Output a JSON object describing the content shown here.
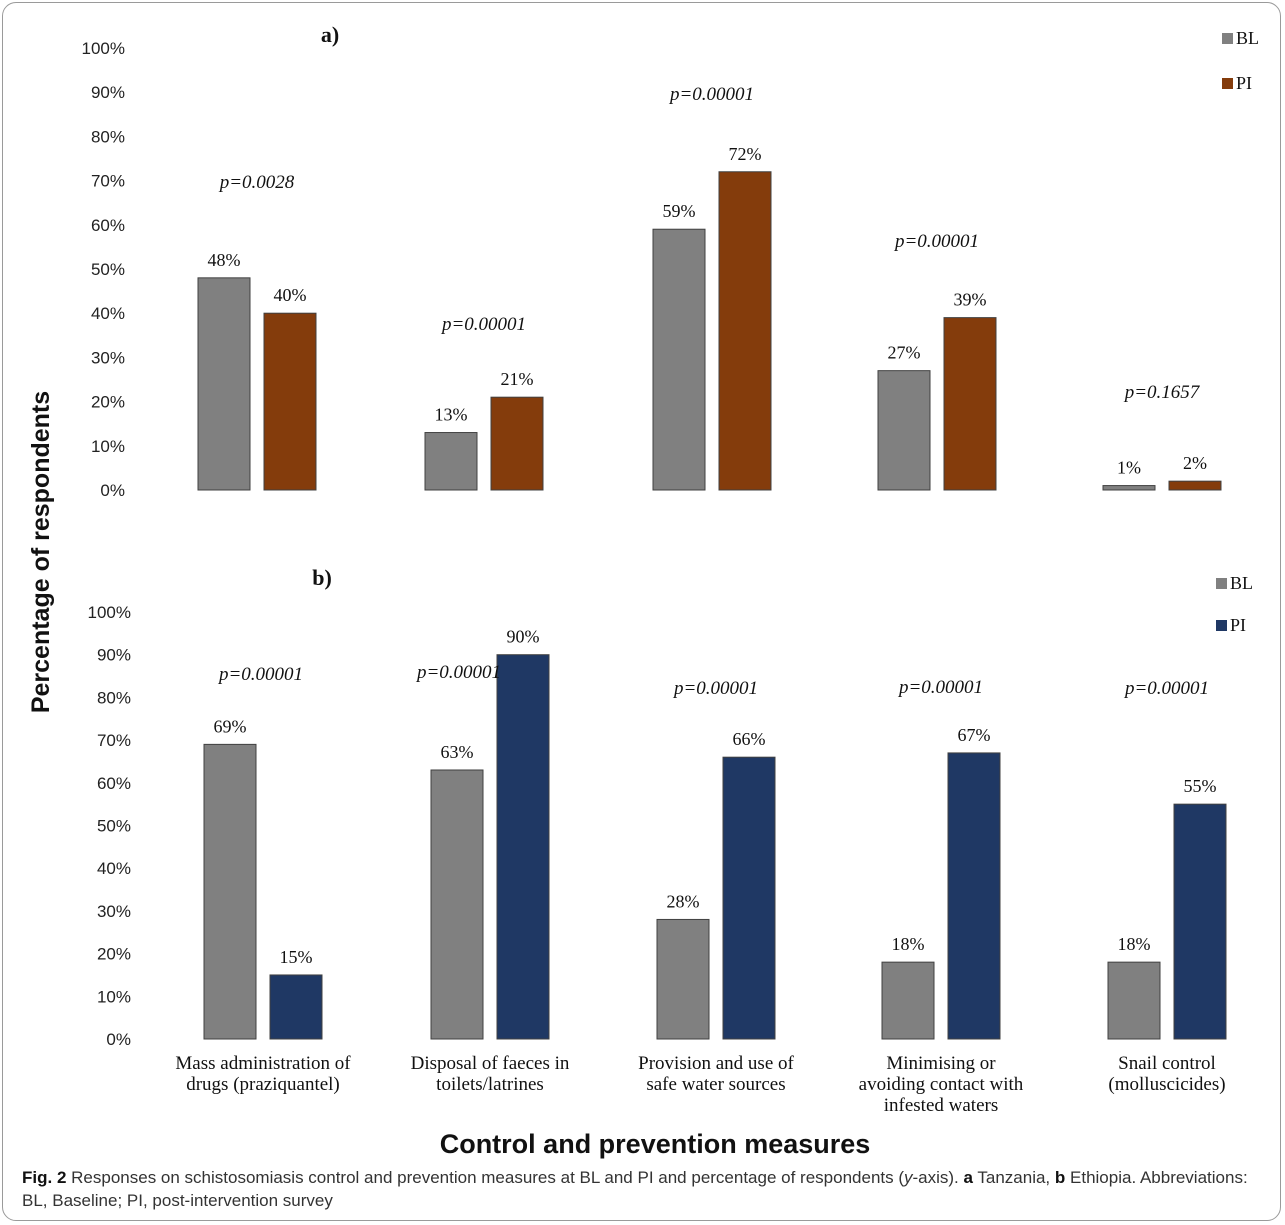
{
  "y_axis_label": "Percentage of respondents",
  "x_axis_label": "Control and prevention measures",
  "caption": {
    "fig_label": "Fig. 2",
    "text_1": "Responses on schistosomiasis control and prevention measures at BL and PI and percentage of respondents (",
    "y_italic": "y",
    "text_2": "-axis). ",
    "a_label": "a",
    "a_text": " Tanzania, ",
    "b_label": "b",
    "b_text": " Ethiopia. Abbreviations: BL, Baseline; PI, post-intervention survey"
  },
  "chart_data": [
    {
      "type": "bar",
      "panel_label": "a)",
      "categories": [
        "Mass administration of drugs (praziquantel)",
        "Disposal of faeces in toilets/latrines",
        "Provision and use of safe water sources",
        "Minimising or avoiding contact with infested waters",
        "Snail control (molluscicides)"
      ],
      "series": [
        {
          "name": "BL",
          "color": "#808080",
          "values": [
            48,
            13,
            59,
            27,
            1
          ]
        },
        {
          "name": "PI",
          "color": "#843c0c",
          "values": [
            40,
            21,
            72,
            39,
            2
          ]
        }
      ],
      "data_labels": {
        "BL": [
          "48%",
          "13%",
          "59%",
          "27%",
          "1%"
        ],
        "PI": [
          "40%",
          "21%",
          "72%",
          "39%",
          "2%"
        ]
      },
      "p_values": [
        "p=0.0028",
        "p=0.00001",
        "p=0.00001",
        "p=0.00001",
        "p=0.1657"
      ],
      "yticks": [
        "0%",
        "10%",
        "20%",
        "30%",
        "40%",
        "50%",
        "60%",
        "70%",
        "80%",
        "90%",
        "100%"
      ],
      "ylim": [
        0,
        100
      ],
      "legend_position": "top-right",
      "grid": false
    },
    {
      "type": "bar",
      "panel_label": "b)",
      "categories": [
        "Mass administration of drugs (praziquantel)",
        "Disposal of faeces in toilets/latrines",
        "Provision and use of safe water sources",
        "Minimising or avoiding contact with infested waters",
        "Snail control (molluscicides)"
      ],
      "category_lines": [
        [
          "Mass administration of",
          "drugs (praziquantel)"
        ],
        [
          "Disposal of faeces in",
          "toilets/latrines"
        ],
        [
          "Provision and use of",
          "safe water sources"
        ],
        [
          "Minimising or",
          "avoiding contact with",
          "infested waters"
        ],
        [
          "Snail control",
          "(molluscicides)"
        ]
      ],
      "series": [
        {
          "name": "BL",
          "color": "#808080",
          "values": [
            69,
            63,
            28,
            18,
            18
          ]
        },
        {
          "name": "PI",
          "color": "#1f3864",
          "values": [
            15,
            90,
            66,
            67,
            55
          ]
        }
      ],
      "data_labels": {
        "BL": [
          "69%",
          "63%",
          "28%",
          "18%",
          "18%"
        ],
        "PI": [
          "15%",
          "90%",
          "66%",
          "67%",
          "55%"
        ]
      },
      "p_values": [
        "p=0.00001",
        "p=0.00001",
        "p=0.00001",
        "p=0.00001",
        "p=0.00001"
      ],
      "yticks": [
        "0%",
        "10%",
        "20%",
        "30%",
        "40%",
        "50%",
        "60%",
        "70%",
        "80%",
        "90%",
        "100%"
      ],
      "ylim": [
        0,
        100
      ],
      "legend_position": "top-right",
      "grid": false
    }
  ]
}
